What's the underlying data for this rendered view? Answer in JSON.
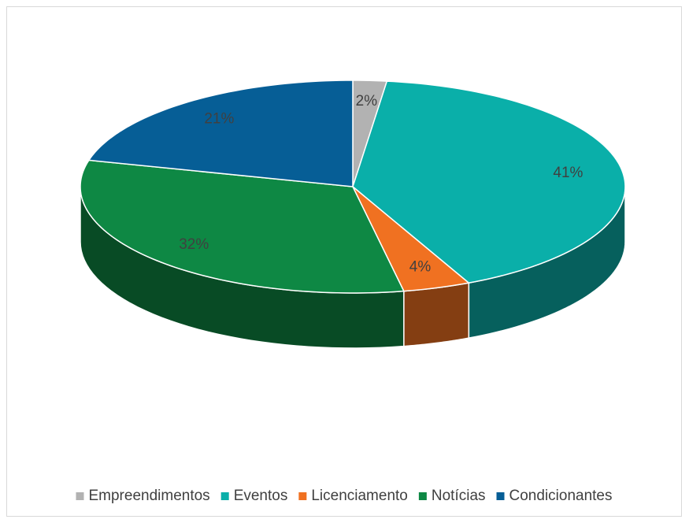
{
  "chart_data": {
    "type": "pie3d",
    "categories": [
      "Empreendimentos",
      "Eventos",
      "Licenciamento",
      "Notícias",
      "Condicionantes"
    ],
    "values": [
      2,
      41,
      4,
      32,
      21
    ],
    "value_labels": [
      "2%",
      "41%",
      "4%",
      "32%",
      "21%"
    ],
    "colors": [
      "#b2b2b2",
      "#0aafa9",
      "#f07121",
      "#0e8844",
      "#065e96"
    ],
    "legend": "bottom"
  }
}
